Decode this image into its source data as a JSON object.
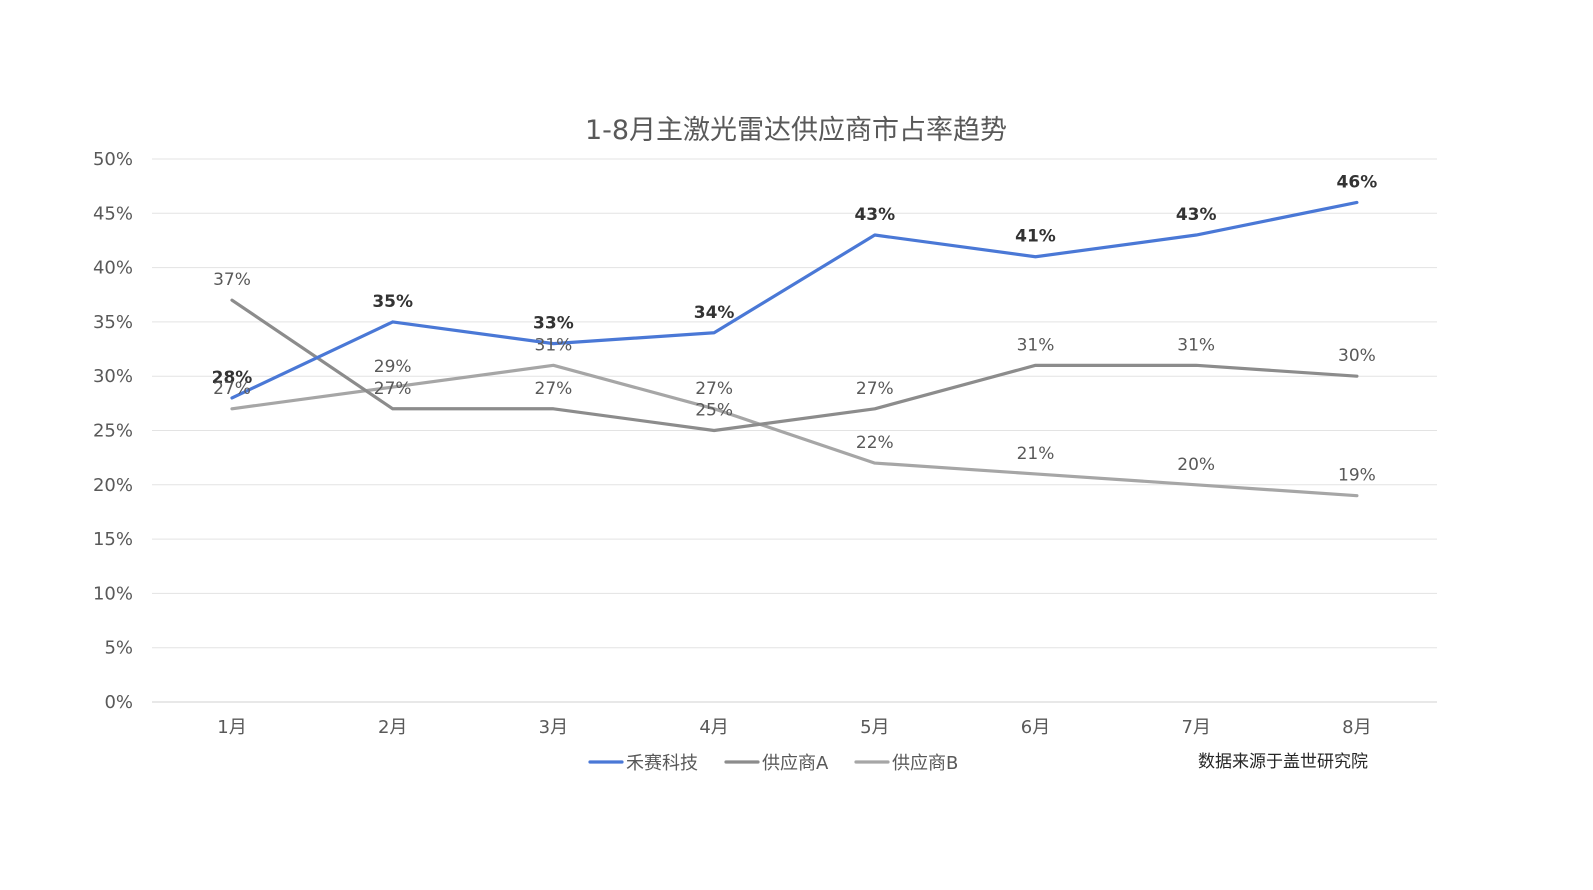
{
  "chart_data": {
    "type": "line",
    "title": "1-8月主激光雷达供应商市占率趋势",
    "categories": [
      "1月",
      "2月",
      "3月",
      "4月",
      "5月",
      "6月",
      "7月",
      "8月"
    ],
    "yticks": [
      "0%",
      "5%",
      "10%",
      "15%",
      "20%",
      "25%",
      "30%",
      "35%",
      "40%",
      "45%",
      "50%"
    ],
    "ylim": [
      0,
      50
    ],
    "grid": true,
    "legend_position": "bottom",
    "series": [
      {
        "name": "禾赛科技",
        "color": "#4a78d6",
        "values": [
          28,
          35,
          33,
          34,
          43,
          41,
          43,
          46
        ],
        "labels": [
          "28%",
          "35%",
          "33%",
          "34%",
          "43%",
          "41%",
          "43%",
          "46%"
        ],
        "bold_labels": true
      },
      {
        "name": "供应商A",
        "color": "#8c8c8c",
        "values": [
          37,
          27,
          27,
          25,
          27,
          31,
          31,
          30
        ],
        "labels": [
          "37%",
          "27%",
          "27%",
          "25%",
          "27%",
          "31%",
          "31%",
          "30%"
        ],
        "bold_labels": false
      },
      {
        "name": "供应商B",
        "color": "#a6a6a6",
        "values": [
          27,
          29,
          31,
          27,
          22,
          21,
          20,
          19
        ],
        "labels": [
          "27%",
          "29%",
          "31%",
          "27%",
          "22%",
          "21%",
          "20%",
          "19%"
        ],
        "bold_labels": false
      }
    ],
    "source_note": "数据来源于盖世研究院"
  }
}
